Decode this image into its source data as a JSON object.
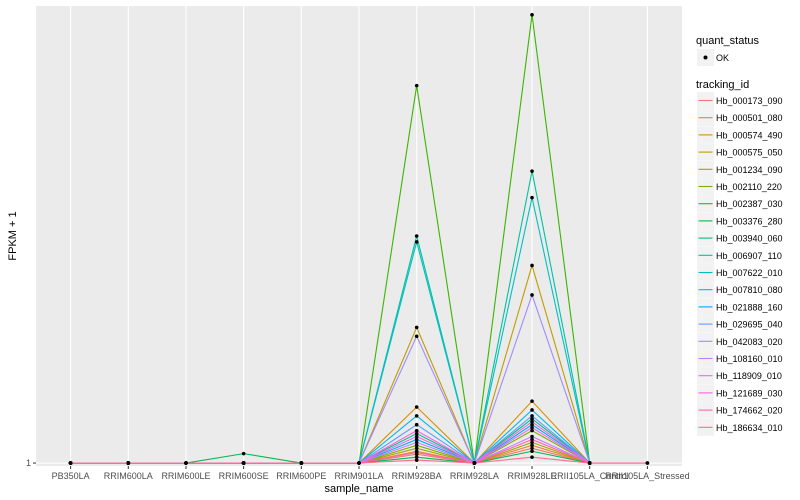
{
  "chart_data": {
    "type": "line",
    "xlabel": "sample_name",
    "ylabel": "FPKM + 1",
    "y_tick_labels": [
      "1"
    ],
    "y_ticks": [
      1
    ],
    "ylim": [
      0.95,
      8.75
    ],
    "grid": true,
    "legend_position": "right",
    "categories": [
      "PB350LA",
      "RRIM600LA",
      "RRIM600LE",
      "RRIM600SE",
      "RRIM600PE",
      "RRIM901LA",
      "RRIM928BA",
      "RRIM928LA",
      "RRIM928LE",
      "RRII105LA_Control",
      "RRII105LA_Stressed"
    ],
    "point_legend": {
      "title": "quant_status",
      "label": "OK"
    },
    "series_legend_title": "tracking_id",
    "series": [
      {
        "name": "Hb_000173_090",
        "color": "#F8766D",
        "values": [
          1,
          1,
          1,
          1,
          1,
          1,
          1.15,
          1,
          1.25,
          1,
          null
        ]
      },
      {
        "name": "Hb_000501_080",
        "color": "#EA8331",
        "values": [
          1,
          1,
          1,
          1,
          1,
          1,
          1.2,
          1,
          1.3,
          1,
          null
        ]
      },
      {
        "name": "Hb_000574_490",
        "color": "#D89000",
        "values": [
          1,
          1,
          1,
          1,
          1,
          1,
          1.95,
          1,
          2.05,
          1,
          null
        ]
      },
      {
        "name": "Hb_000575_050",
        "color": "#C09B00",
        "values": [
          1,
          1,
          1,
          1,
          1,
          1,
          3.3,
          1,
          4.35,
          1,
          null
        ]
      },
      {
        "name": "Hb_001234_090",
        "color": "#A3A500",
        "values": [
          1,
          1,
          1,
          1,
          1,
          1,
          1.25,
          1,
          1.35,
          1,
          null
        ]
      },
      {
        "name": "Hb_002110_220",
        "color": "#7CAE00",
        "values": [
          1,
          1,
          1,
          1,
          1,
          1,
          1.3,
          1,
          1.55,
          1,
          null
        ]
      },
      {
        "name": "Hb_002387_030",
        "color": "#39B600",
        "values": [
          1,
          1,
          1,
          1,
          1,
          1,
          7.4,
          1,
          8.6,
          1,
          null
        ]
      },
      {
        "name": "Hb_003376_280",
        "color": "#00BB4E",
        "values": [
          1,
          1,
          1,
          1.16,
          1,
          1,
          1.1,
          1,
          1.2,
          1,
          null
        ]
      },
      {
        "name": "Hb_003940_060",
        "color": "#00BF7D",
        "values": [
          1,
          1,
          1,
          1,
          1,
          1,
          1.5,
          1,
          1.75,
          1,
          null
        ]
      },
      {
        "name": "Hb_006907_110",
        "color": "#00C1A3",
        "values": [
          1,
          1,
          1,
          1,
          1,
          1,
          4.85,
          1,
          5.95,
          1,
          null
        ]
      },
      {
        "name": "Hb_007622_010",
        "color": "#00BFC4",
        "values": [
          1,
          1,
          1,
          1,
          1,
          1,
          4.75,
          1,
          5.5,
          1,
          null
        ]
      },
      {
        "name": "Hb_007810_080",
        "color": "#00B8E7",
        "values": [
          1,
          1,
          1,
          1,
          1,
          1,
          1.8,
          1,
          1.9,
          1,
          null
        ]
      },
      {
        "name": "Hb_021888_160",
        "color": "#00A9FF",
        "values": [
          1,
          1,
          1,
          1,
          1,
          1,
          1.4,
          1,
          1.65,
          1,
          null
        ]
      },
      {
        "name": "Hb_029695_040",
        "color": "#619CFF",
        "values": [
          1,
          1,
          1,
          1,
          1,
          1,
          1.65,
          1,
          1.8,
          1,
          null
        ]
      },
      {
        "name": "Hb_042083_020",
        "color": "#9F8CFF",
        "values": [
          1,
          1,
          1,
          1,
          1,
          1,
          3.15,
          1,
          3.85,
          1,
          null
        ]
      },
      {
        "name": "Hb_108160_010",
        "color": "#C77CFF",
        "values": [
          1,
          1,
          1,
          1,
          1,
          1,
          1.35,
          1,
          1.45,
          1,
          null
        ]
      },
      {
        "name": "Hb_118909_010",
        "color": "#E76BF3",
        "values": [
          1,
          1,
          1,
          1,
          1,
          1,
          1.45,
          1,
          1.6,
          1,
          null
        ]
      },
      {
        "name": "Hb_121689_030",
        "color": "#F564E3",
        "values": [
          1,
          1,
          1,
          1,
          1,
          1,
          1.55,
          1,
          1.7,
          1,
          null
        ]
      },
      {
        "name": "Hb_174662_020",
        "color": "#FF64B0",
        "values": [
          1,
          1,
          1,
          1,
          1,
          1,
          1.18,
          1,
          1.4,
          1,
          1
        ]
      },
      {
        "name": "Hb_186634_010",
        "color": "#FF6C91",
        "values": [
          1,
          1,
          1,
          1,
          1,
          1,
          1.05,
          1,
          1.1,
          1,
          1
        ]
      }
    ]
  }
}
